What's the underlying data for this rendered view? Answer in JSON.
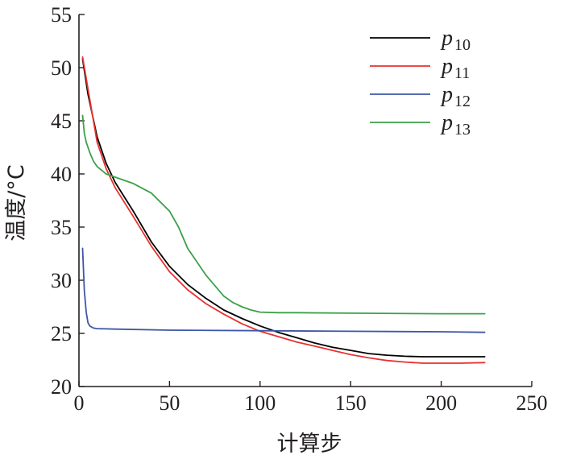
{
  "chart_data": {
    "type": "line",
    "xlabel": "计算步",
    "ylabel": "温度/°C",
    "xlim": [
      0,
      250
    ],
    "ylim": [
      20,
      55
    ],
    "xticks": [
      0,
      50,
      100,
      150,
      200,
      250
    ],
    "yticks": [
      20,
      25,
      30,
      35,
      40,
      45,
      50,
      55
    ],
    "grid": false,
    "legend": "top-right",
    "series": [
      {
        "name": "p",
        "subscript": "10",
        "color": "#000000",
        "x": [
          2,
          5,
          10,
          15,
          20,
          30,
          40,
          50,
          60,
          70,
          80,
          90,
          100,
          110,
          120,
          130,
          140,
          150,
          160,
          170,
          180,
          190,
          200,
          210,
          224
        ],
        "y": [
          50.8,
          47.5,
          43.5,
          41.0,
          39.2,
          36.5,
          33.6,
          31.3,
          29.6,
          28.3,
          27.2,
          26.4,
          25.7,
          25.1,
          24.6,
          24.1,
          23.7,
          23.4,
          23.1,
          22.95,
          22.85,
          22.8,
          22.8,
          22.8,
          22.8
        ]
      },
      {
        "name": "p",
        "subscript": "11",
        "color": "#e8312f",
        "x": [
          2,
          5,
          10,
          15,
          20,
          30,
          40,
          50,
          60,
          70,
          80,
          90,
          100,
          110,
          120,
          130,
          140,
          150,
          160,
          170,
          180,
          190,
          200,
          210,
          224
        ],
        "y": [
          51.0,
          48.0,
          43.0,
          40.5,
          38.7,
          36.0,
          33.2,
          30.8,
          29.1,
          27.8,
          26.8,
          25.9,
          25.2,
          24.7,
          24.2,
          23.8,
          23.4,
          23.0,
          22.7,
          22.45,
          22.3,
          22.2,
          22.2,
          22.2,
          22.25
        ]
      },
      {
        "name": "p",
        "subscript": "12",
        "color": "#3e56a6",
        "x": [
          2,
          3,
          4,
          5,
          6,
          8,
          10,
          20,
          50,
          100,
          150,
          200,
          224
        ],
        "y": [
          33.0,
          29.0,
          27.0,
          26.0,
          25.7,
          25.5,
          25.45,
          25.4,
          25.3,
          25.25,
          25.2,
          25.15,
          25.1
        ]
      },
      {
        "name": "p",
        "subscript": "13",
        "color": "#3aa14a",
        "x": [
          2,
          3,
          4,
          6,
          8,
          10,
          15,
          20,
          30,
          40,
          50,
          55,
          60,
          70,
          80,
          85,
          90,
          95,
          100,
          110,
          120,
          150,
          200,
          224
        ],
        "y": [
          45.5,
          43.8,
          43.0,
          42.0,
          41.2,
          40.7,
          40.0,
          39.7,
          39.1,
          38.2,
          36.5,
          35.0,
          33.0,
          30.5,
          28.5,
          27.9,
          27.5,
          27.2,
          27.0,
          26.95,
          26.95,
          26.9,
          26.85,
          26.85
        ]
      }
    ]
  }
}
